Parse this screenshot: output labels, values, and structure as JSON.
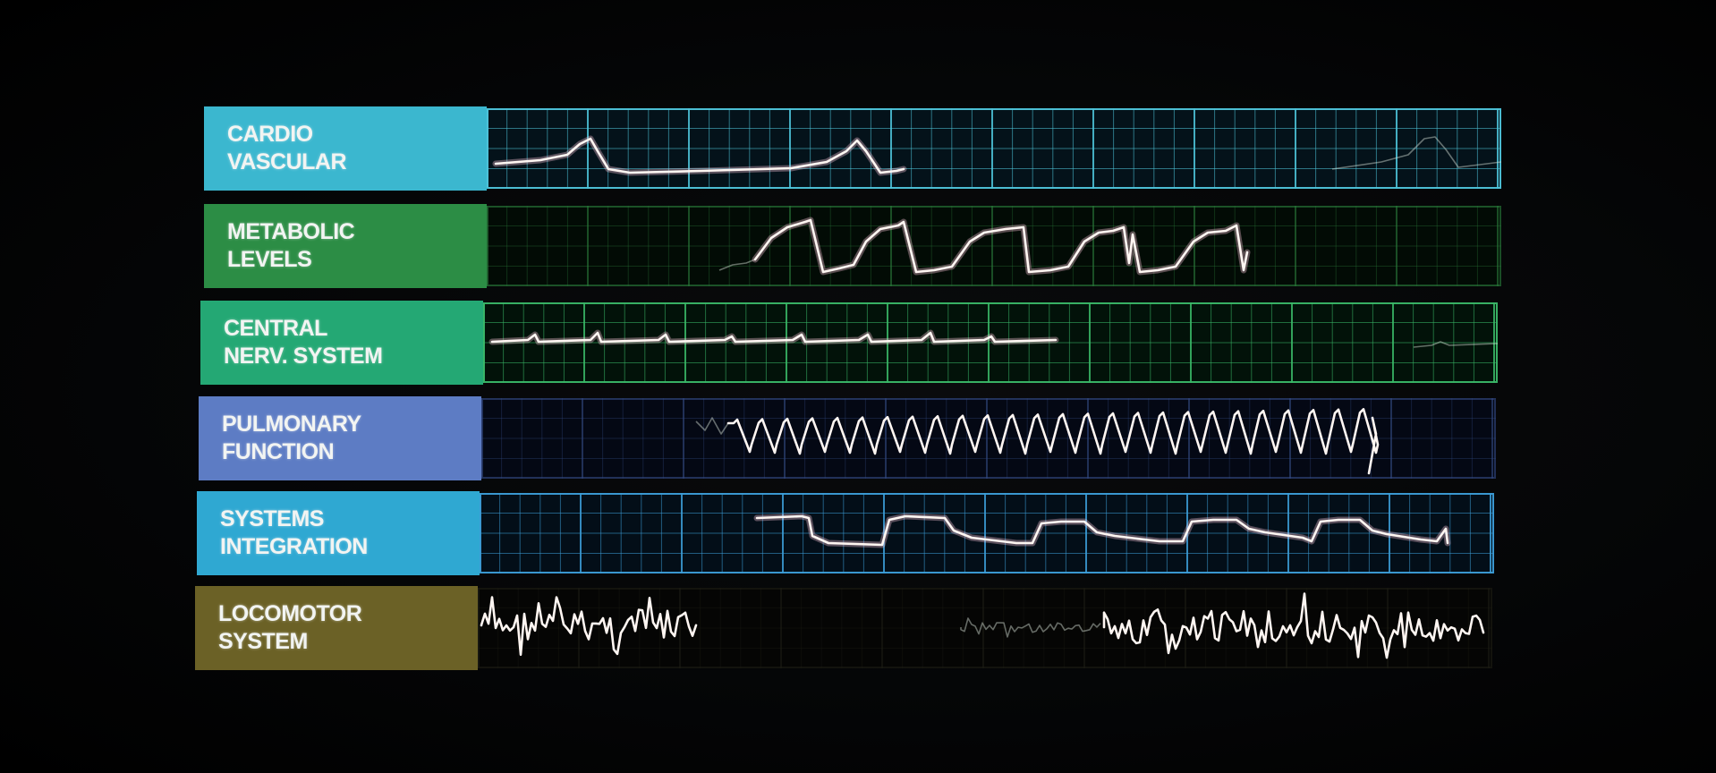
{
  "panels": [
    {
      "id": "cardio",
      "label_line1": "CARDIO",
      "label_line2": "VASCULAR",
      "label_color": "#3bb7cf",
      "grid_color": "#4fc6dc",
      "background": "#04121a",
      "grid_style": "bright"
    },
    {
      "id": "metabolic",
      "label_line1": "METABOLIC",
      "label_line2": "LEVELS",
      "label_color": "#2c8d45",
      "grid_color": "#2a7a3a",
      "background": "#020b05",
      "grid_style": "dim"
    },
    {
      "id": "cns",
      "label_line1": "CENTRAL",
      "label_line2": "NERV. SYSTEM",
      "label_color": "#24a874",
      "grid_color": "#3ab868",
      "background": "#021209",
      "grid_style": "bright"
    },
    {
      "id": "pulmonary",
      "label_line1": "PULMONARY",
      "label_line2": "FUNCTION",
      "label_color": "#5d7cc4",
      "grid_color": "#334a82",
      "background": "#040814",
      "grid_style": "dim"
    },
    {
      "id": "systems",
      "label_line1": "SYSTEMS",
      "label_line2": "INTEGRATION",
      "label_color": "#2fa8d2",
      "grid_color": "#3c9ed8",
      "background": "#030e18",
      "grid_style": "bright"
    },
    {
      "id": "locomotor",
      "label_line1": "LOCOMOTOR",
      "label_line2": "SYSTEM",
      "label_color": "#6b6126",
      "grid_color": "#1c1c14",
      "background": "#050504",
      "grid_style": "dim"
    }
  ]
}
